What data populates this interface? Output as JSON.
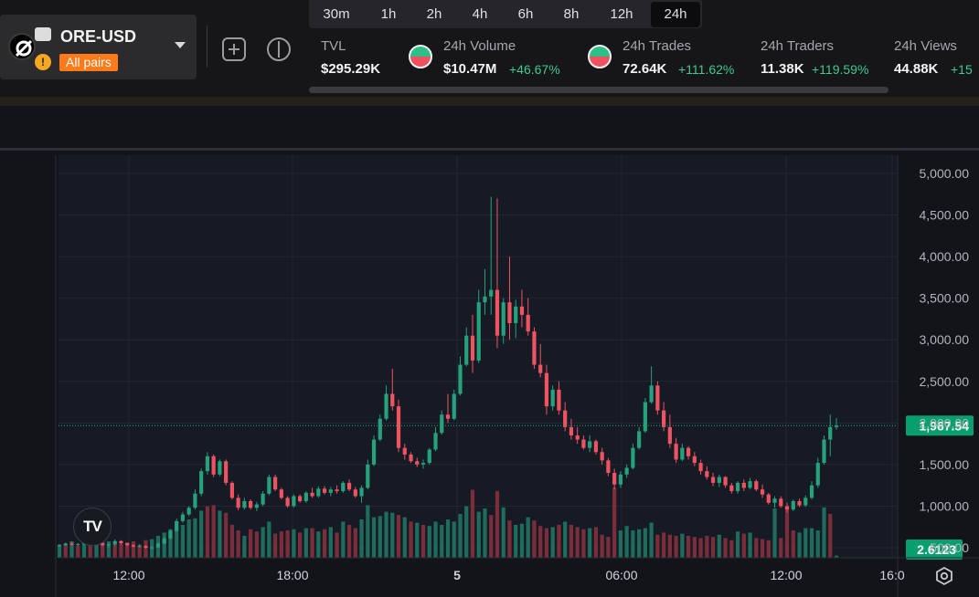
{
  "pair": {
    "name": "ORE-USD",
    "filter_label": "All pairs"
  },
  "timeframes": [
    {
      "label": "30m",
      "active": false
    },
    {
      "label": "1h",
      "active": false
    },
    {
      "label": "2h",
      "active": false
    },
    {
      "label": "4h",
      "active": false
    },
    {
      "label": "6h",
      "active": false
    },
    {
      "label": "8h",
      "active": false
    },
    {
      "label": "12h",
      "active": false
    },
    {
      "label": "24h",
      "active": true
    }
  ],
  "stats": {
    "tvl": {
      "label": "TVL",
      "value": "$295.29K"
    },
    "volume": {
      "label": "24h Volume",
      "value": "$10.47M",
      "change": "+46.67%"
    },
    "trades": {
      "label": "24h Trades",
      "value": "72.64K",
      "change": "+111.62%"
    },
    "traders": {
      "label": "24h Traders",
      "value": "11.38K",
      "change": "+119.59%"
    },
    "views": {
      "label": "24h Views",
      "value": "44.88K",
      "change": "+15"
    }
  },
  "colors": {
    "up": "#26a17b",
    "down": "#ef5361",
    "vol_up": "#1f6b5c",
    "vol_down": "#7c2d3a",
    "accent": "#ff7a1a"
  },
  "icons": [
    "ore-logo-icon",
    "warning-icon",
    "chevron-down-icon",
    "add-icon",
    "split-view-icon",
    "tradingview-logo-icon",
    "settings-icon"
  ],
  "chart_data": {
    "type": "candlestick",
    "price_axis": [
      "5,000.00",
      "4,500.00",
      "4,000.00",
      "3,500.00",
      "3,000.00",
      "2,500.00",
      "2,000.00",
      "1,500.00",
      "1,000.00",
      "500.00"
    ],
    "price_ticks": [
      5000,
      4500,
      4000,
      3500,
      3000,
      2500,
      2000,
      1500,
      1000,
      500
    ],
    "ylim": [
      0,
      5200
    ],
    "time_axis": [
      "12:00",
      "18:00",
      "5",
      "06:00",
      "12:00",
      "16:0"
    ],
    "current_price": 1967.54,
    "current_price_label": "1,967.54",
    "current_volume_label": "2.6123",
    "candles": [
      [
        520,
        540,
        510,
        530
      ],
      [
        530,
        560,
        520,
        550
      ],
      [
        550,
        570,
        530,
        535
      ],
      [
        535,
        555,
        520,
        545
      ],
      [
        545,
        600,
        530,
        580
      ],
      [
        580,
        620,
        560,
        570
      ],
      [
        570,
        640,
        550,
        560
      ],
      [
        560,
        580,
        520,
        530
      ],
      [
        530,
        550,
        500,
        540
      ],
      [
        540,
        600,
        520,
        580
      ],
      [
        580,
        590,
        540,
        555
      ],
      [
        555,
        560,
        520,
        530
      ],
      [
        530,
        545,
        505,
        515
      ],
      [
        515,
        540,
        500,
        520
      ],
      [
        520,
        530,
        490,
        500
      ],
      [
        500,
        520,
        480,
        505
      ],
      [
        505,
        560,
        500,
        550
      ],
      [
        550,
        630,
        540,
        610
      ],
      [
        610,
        720,
        600,
        700
      ],
      [
        700,
        850,
        690,
        820
      ],
      [
        820,
        930,
        800,
        900
      ],
      [
        900,
        1000,
        880,
        980
      ],
      [
        980,
        1200,
        960,
        1150
      ],
      [
        1150,
        1450,
        1120,
        1420
      ],
      [
        1420,
        1650,
        1380,
        1600
      ],
      [
        1600,
        1620,
        1350,
        1380
      ],
      [
        1380,
        1560,
        1360,
        1540
      ],
      [
        1540,
        1560,
        1250,
        1280
      ],
      [
        1280,
        1300,
        1080,
        1100
      ],
      [
        1100,
        1140,
        950,
        980
      ],
      [
        980,
        1100,
        960,
        1060
      ],
      [
        1060,
        1080,
        960,
        980
      ],
      [
        980,
        1050,
        940,
        1020
      ],
      [
        1020,
        1180,
        1000,
        1150
      ],
      [
        1150,
        1380,
        1130,
        1350
      ],
      [
        1350,
        1380,
        1180,
        1200
      ],
      [
        1200,
        1220,
        1080,
        1100
      ],
      [
        1100,
        1120,
        980,
        1000
      ],
      [
        1000,
        1140,
        980,
        1120
      ],
      [
        1120,
        1140,
        1040,
        1060
      ],
      [
        1060,
        1180,
        1040,
        1160
      ],
      [
        1160,
        1220,
        1100,
        1120
      ],
      [
        1120,
        1240,
        1100,
        1210
      ],
      [
        1210,
        1240,
        1140,
        1160
      ],
      [
        1160,
        1230,
        1120,
        1200
      ],
      [
        1200,
        1250,
        1150,
        1180
      ],
      [
        1180,
        1300,
        1160,
        1280
      ],
      [
        1280,
        1320,
        1180,
        1200
      ],
      [
        1200,
        1230,
        1100,
        1120
      ],
      [
        1120,
        1250,
        1040,
        1220
      ],
      [
        1220,
        1560,
        1200,
        1500
      ],
      [
        1500,
        1850,
        1480,
        1800
      ],
      [
        1800,
        2100,
        1780,
        2050
      ],
      [
        2050,
        2450,
        2030,
        2350
      ],
      [
        2350,
        2650,
        2150,
        2200
      ],
      [
        2200,
        2280,
        1650,
        1700
      ],
      [
        1700,
        1750,
        1560,
        1620
      ],
      [
        1620,
        1650,
        1520,
        1540
      ],
      [
        1540,
        1580,
        1470,
        1500
      ],
      [
        1500,
        1560,
        1450,
        1520
      ],
      [
        1520,
        1700,
        1500,
        1680
      ],
      [
        1680,
        1950,
        1660,
        1880
      ],
      [
        1880,
        2150,
        1860,
        2100
      ],
      [
        2100,
        2350,
        2000,
        2050
      ],
      [
        2050,
        2400,
        2030,
        2350
      ],
      [
        2350,
        2800,
        2330,
        2700
      ],
      [
        2700,
        3150,
        2680,
        3050
      ],
      [
        3050,
        3300,
        2600,
        2750
      ],
      [
        2750,
        3600,
        2720,
        3450
      ],
      [
        3450,
        3850,
        3300,
        3520
      ],
      [
        3520,
        4720,
        3300,
        3600
      ],
      [
        3600,
        4700,
        2900,
        3050
      ],
      [
        3050,
        3500,
        2950,
        3450
      ],
      [
        3450,
        4000,
        3000,
        3200
      ],
      [
        3200,
        3480,
        3020,
        3400
      ],
      [
        3400,
        3600,
        3150,
        3300
      ],
      [
        3300,
        3500,
        3050,
        3100
      ],
      [
        3100,
        3150,
        2650,
        2700
      ],
      [
        2700,
        2950,
        2550,
        2600
      ],
      [
        2600,
        2700,
        2100,
        2200
      ],
      [
        2200,
        2450,
        2150,
        2400
      ],
      [
        2400,
        2500,
        2100,
        2150
      ],
      [
        2150,
        2250,
        1900,
        1950
      ],
      [
        1950,
        2050,
        1800,
        1850
      ],
      [
        1850,
        1950,
        1750,
        1800
      ],
      [
        1800,
        1850,
        1680,
        1700
      ],
      [
        1700,
        1850,
        1650,
        1780
      ],
      [
        1780,
        1800,
        1620,
        1650
      ],
      [
        1650,
        1700,
        1500,
        1550
      ],
      [
        1550,
        1580,
        1360,
        1400
      ],
      [
        1400,
        1450,
        1200,
        1260
      ],
      [
        1260,
        1420,
        1220,
        1380
      ],
      [
        1380,
        1500,
        1340,
        1460
      ],
      [
        1460,
        1750,
        1440,
        1700
      ],
      [
        1700,
        1950,
        1680,
        1900
      ],
      [
        1900,
        2300,
        1880,
        2250
      ],
      [
        2250,
        2680,
        2230,
        2450
      ],
      [
        2450,
        2500,
        2100,
        2150
      ],
      [
        2150,
        2250,
        1900,
        1950
      ],
      [
        1950,
        2100,
        1700,
        1750
      ],
      [
        1750,
        1820,
        1520,
        1560
      ],
      [
        1560,
        1750,
        1540,
        1700
      ],
      [
        1700,
        1720,
        1560,
        1600
      ],
      [
        1600,
        1650,
        1480,
        1520
      ],
      [
        1520,
        1560,
        1380,
        1420
      ],
      [
        1420,
        1480,
        1320,
        1350
      ],
      [
        1350,
        1400,
        1240,
        1280
      ],
      [
        1280,
        1380,
        1230,
        1350
      ],
      [
        1350,
        1360,
        1220,
        1250
      ],
      [
        1250,
        1280,
        1150,
        1180
      ],
      [
        1180,
        1300,
        1150,
        1280
      ],
      [
        1280,
        1320,
        1180,
        1220
      ],
      [
        1220,
        1340,
        1200,
        1300
      ],
      [
        1300,
        1320,
        1180,
        1200
      ],
      [
        1200,
        1260,
        1100,
        1140
      ],
      [
        1140,
        1160,
        1020,
        1040
      ],
      [
        1040,
        1120,
        980,
        1090
      ],
      [
        1090,
        1120,
        980,
        1000
      ],
      [
        1000,
        1040,
        920,
        960
      ],
      [
        960,
        1080,
        940,
        1060
      ],
      [
        1060,
        1090,
        990,
        1010
      ],
      [
        1010,
        1130,
        990,
        1100
      ],
      [
        1100,
        1300,
        1080,
        1250
      ],
      [
        1250,
        1580,
        1220,
        1520
      ],
      [
        1520,
        1850,
        1500,
        1800
      ],
      [
        1800,
        2100,
        1600,
        1950
      ],
      [
        1950,
        2060,
        1920,
        1967.54
      ]
    ],
    "volumes": [
      [
        120,
        1
      ],
      [
        130,
        0
      ],
      [
        150,
        1
      ],
      [
        110,
        0
      ],
      [
        160,
        1
      ],
      [
        140,
        0
      ],
      [
        170,
        1
      ],
      [
        130,
        0
      ],
      [
        150,
        1
      ],
      [
        120,
        0
      ],
      [
        130,
        0
      ],
      [
        140,
        0
      ],
      [
        150,
        0
      ],
      [
        120,
        0
      ],
      [
        160,
        0
      ],
      [
        170,
        1
      ],
      [
        200,
        1
      ],
      [
        230,
        1
      ],
      [
        260,
        1
      ],
      [
        280,
        1
      ],
      [
        300,
        1
      ],
      [
        350,
        1
      ],
      [
        360,
        1
      ],
      [
        430,
        1
      ],
      [
        470,
        0
      ],
      [
        480,
        0
      ],
      [
        430,
        1
      ],
      [
        410,
        0
      ],
      [
        300,
        0
      ],
      [
        250,
        0
      ],
      [
        200,
        1
      ],
      [
        260,
        0
      ],
      [
        240,
        0
      ],
      [
        280,
        1
      ],
      [
        330,
        1
      ],
      [
        220,
        0
      ],
      [
        240,
        0
      ],
      [
        250,
        0
      ],
      [
        260,
        1
      ],
      [
        230,
        0
      ],
      [
        270,
        1
      ],
      [
        270,
        0
      ],
      [
        240,
        1
      ],
      [
        260,
        0
      ],
      [
        280,
        1
      ],
      [
        230,
        0
      ],
      [
        330,
        1
      ],
      [
        300,
        0
      ],
      [
        270,
        0
      ],
      [
        350,
        1
      ],
      [
        480,
        1
      ],
      [
        370,
        1
      ],
      [
        380,
        1
      ],
      [
        420,
        1
      ],
      [
        410,
        1
      ],
      [
        390,
        0
      ],
      [
        370,
        1
      ],
      [
        330,
        0
      ],
      [
        320,
        1
      ],
      [
        300,
        0
      ],
      [
        290,
        1
      ],
      [
        330,
        1
      ],
      [
        300,
        1
      ],
      [
        350,
        1
      ],
      [
        330,
        1
      ],
      [
        400,
        1
      ],
      [
        470,
        1
      ],
      [
        620,
        0
      ],
      [
        420,
        1
      ],
      [
        450,
        1
      ],
      [
        390,
        0
      ],
      [
        610,
        0
      ],
      [
        460,
        1
      ],
      [
        340,
        0
      ],
      [
        300,
        1
      ],
      [
        310,
        1
      ],
      [
        370,
        1
      ],
      [
        340,
        0
      ],
      [
        290,
        0
      ],
      [
        270,
        0
      ],
      [
        280,
        1
      ],
      [
        300,
        0
      ],
      [
        330,
        1
      ],
      [
        300,
        0
      ],
      [
        280,
        0
      ],
      [
        260,
        0
      ],
      [
        270,
        1
      ],
      [
        280,
        0
      ],
      [
        210,
        0
      ],
      [
        190,
        0
      ],
      [
        640,
        0
      ],
      [
        250,
        1
      ],
      [
        290,
        1
      ],
      [
        250,
        1
      ],
      [
        260,
        1
      ],
      [
        270,
        1
      ],
      [
        320,
        1
      ],
      [
        210,
        0
      ],
      [
        230,
        0
      ],
      [
        210,
        0
      ],
      [
        200,
        0
      ],
      [
        220,
        1
      ],
      [
        200,
        0
      ],
      [
        190,
        0
      ],
      [
        180,
        0
      ],
      [
        200,
        0
      ],
      [
        190,
        0
      ],
      [
        210,
        1
      ],
      [
        180,
        0
      ],
      [
        160,
        0
      ],
      [
        240,
        1
      ],
      [
        220,
        0
      ],
      [
        230,
        1
      ],
      [
        180,
        0
      ],
      [
        170,
        0
      ],
      [
        160,
        0
      ],
      [
        450,
        1
      ],
      [
        180,
        0
      ],
      [
        460,
        0
      ],
      [
        250,
        0
      ],
      [
        230,
        1
      ],
      [
        270,
        1
      ],
      [
        270,
        1
      ],
      [
        250,
        1
      ],
      [
        460,
        1
      ],
      [
        400,
        0
      ],
      [
        20,
        1
      ]
    ]
  }
}
